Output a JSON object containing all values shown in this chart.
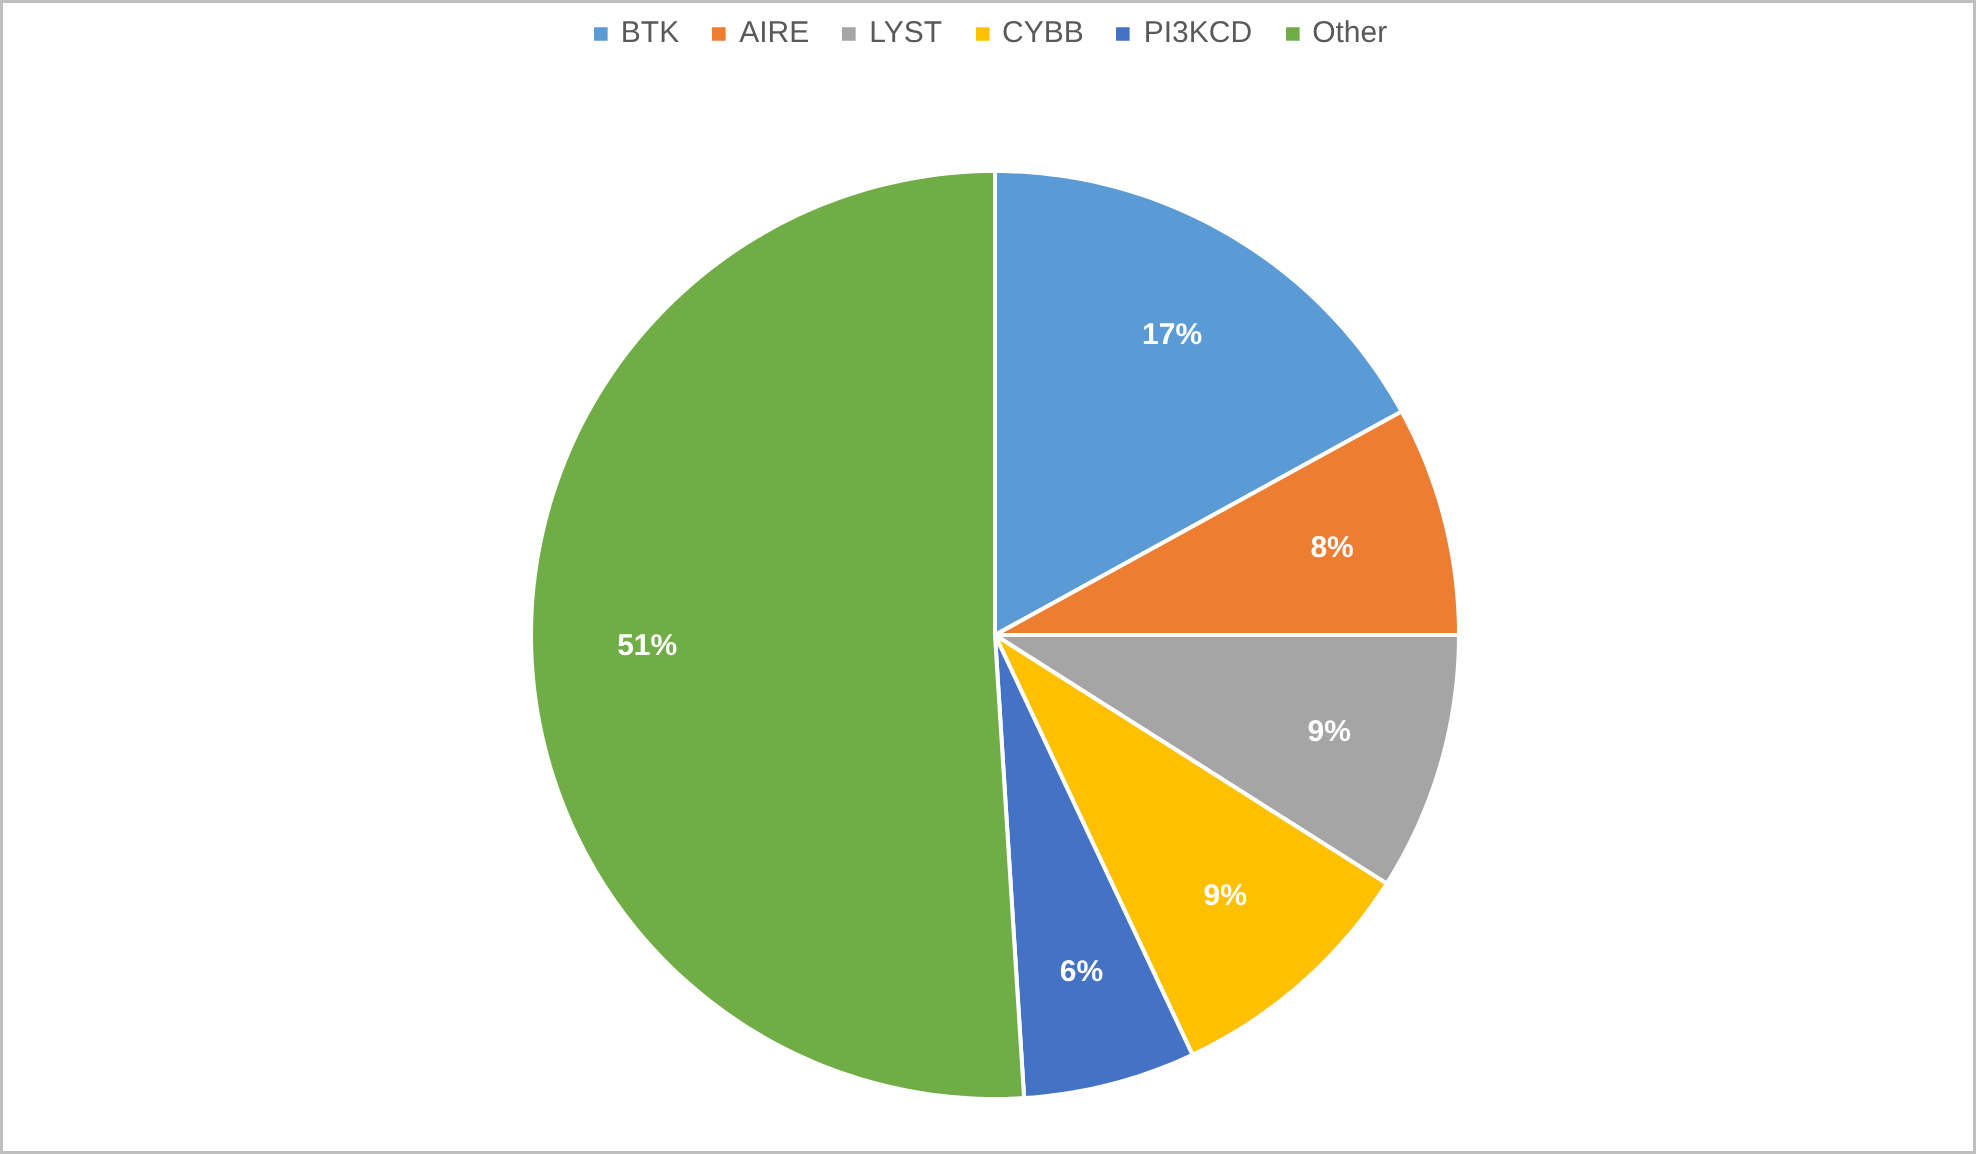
{
  "chart_data": {
    "type": "pie",
    "categories": [
      "BTK",
      "AIRE",
      "LYST",
      "CYBB",
      "PI3KCD",
      "Other"
    ],
    "values": [
      17,
      8,
      9,
      9,
      6,
      51
    ],
    "colors": [
      "#5b9bd5",
      "#ed7d31",
      "#a5a5a5",
      "#ffc000",
      "#4472c4",
      "#70ad47"
    ],
    "value_labels": [
      "17%",
      "8%",
      "9%",
      "9%",
      "6%",
      "51%"
    ],
    "legend": "top"
  }
}
